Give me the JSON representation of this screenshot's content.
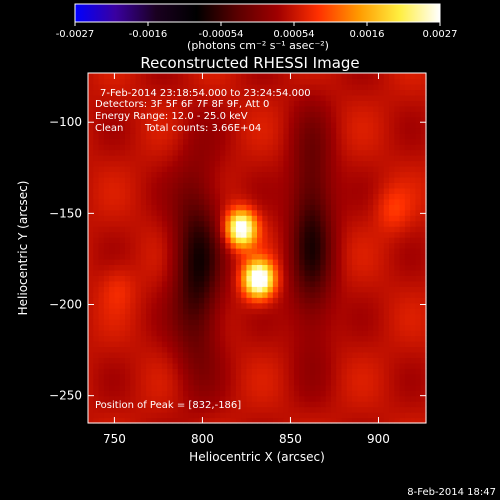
{
  "colorbar": {
    "ticks": [
      "-0.0027",
      "-0.0016",
      "-0.00054",
      "0.00054",
      "0.0016",
      "0.0027"
    ],
    "unit_label": "(photons cm⁻² s⁻¹ asec⁻²)",
    "range": [
      -0.0027,
      0.0027
    ],
    "colormap": [
      "#0000ff",
      "#3a00a0",
      "#1a0020",
      "#000000",
      "#5a0000",
      "#a00000",
      "#ff3000",
      "#ff9a00",
      "#ffee40",
      "#ffffff"
    ]
  },
  "title": "Reconstructed RHESSI Image",
  "annotations": {
    "time": "7-Feb-2014 23:18:54.000 to 23:24:54.000",
    "detectors": "Detectors: 3F 5F 6F 7F 8F 9F, Att 0",
    "energy": "Energy Range: 12.0 - 25.0 keV",
    "method": "Clean",
    "counts": "Total counts: 3.66E+04",
    "peak": "Position of Peak = [832,-186]"
  },
  "footer_date": "8-Feb-2014 18:47",
  "chart_data": {
    "type": "heatmap",
    "title": "Reconstructed RHESSI Image",
    "xlabel": "Heliocentric X (arcsec)",
    "ylabel": "Heliocentric Y (arcsec)",
    "xlim": [
      735,
      927
    ],
    "ylim": [
      -265,
      -73
    ],
    "xticks": [
      750,
      800,
      850,
      900
    ],
    "yticks": [
      -100,
      -150,
      -200,
      -250
    ],
    "sources": [
      {
        "x": 822,
        "y": -158,
        "sx": 6,
        "sy": 7,
        "amp": 0.0025
      },
      {
        "x": 832,
        "y": -186,
        "sx": 6,
        "sy": 7,
        "amp": 0.0027
      },
      {
        "x": 797,
        "y": -180,
        "sx": 10,
        "sy": 38,
        "amp": -0.0012
      },
      {
        "x": 862,
        "y": -160,
        "sx": 9,
        "sy": 40,
        "amp": -0.0011
      },
      {
        "x": 908,
        "y": -148,
        "sx": 7,
        "sy": 9,
        "amp": 0.0004
      },
      {
        "x": 752,
        "y": -190,
        "sx": 7,
        "sy": 9,
        "amp": 0.0003
      }
    ],
    "background": 0.0005,
    "grid": false
  }
}
